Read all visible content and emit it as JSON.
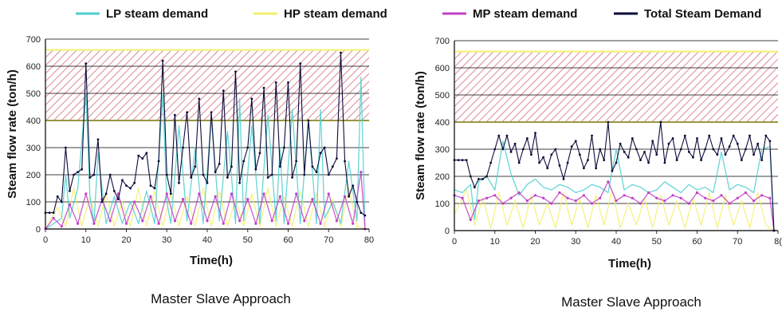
{
  "legend": [
    {
      "label": "LP steam demand",
      "color": "#4ccfd0"
    },
    {
      "label": "HP steam demand",
      "color": "#f3f06e"
    },
    {
      "label": "MP steam demand",
      "color": "#c23fc7"
    },
    {
      "label": "Total Steam Demand",
      "color": "#0b0b3a"
    }
  ],
  "chart_data": [
    {
      "type": "line",
      "caption": "Master Slave Approach",
      "xlabel": "Time(h)",
      "ylabel": "Steam flow rate (ton/h)",
      "xlim": [
        0,
        80
      ],
      "ylim": [
        0,
        700
      ],
      "xticks": [
        "0",
        "10",
        "20",
        "30",
        "40",
        "50",
        "60",
        "70",
        "80"
      ],
      "yticks": [
        "0",
        "100",
        "200",
        "300",
        "400",
        "500",
        "600",
        "700"
      ],
      "grid": "horizontal",
      "limit_band": {
        "from": 400,
        "to": 660,
        "color": "#f3f06e",
        "hatch": "#d66a7a"
      },
      "series": [
        {
          "name": "Total Steam Demand",
          "color": "#0b0b3a",
          "x": [
            0,
            1,
            2,
            3,
            4,
            5,
            6,
            7,
            8,
            9,
            10,
            11,
            12,
            13,
            14,
            15,
            16,
            17,
            18,
            19,
            20,
            21,
            22,
            23,
            24,
            25,
            26,
            27,
            28,
            29,
            30,
            31,
            32,
            33,
            34,
            35,
            36,
            37,
            38,
            39,
            40,
            41,
            42,
            43,
            44,
            45,
            46,
            47,
            48,
            49,
            50,
            51,
            52,
            53,
            54,
            55,
            56,
            57,
            58,
            59,
            60,
            61,
            62,
            63,
            64,
            65,
            66,
            67,
            68,
            69,
            70,
            71,
            72,
            73,
            74,
            75,
            76,
            77,
            78,
            79
          ],
          "y": [
            60,
            60,
            60,
            120,
            100,
            300,
            140,
            200,
            210,
            220,
            610,
            190,
            200,
            330,
            100,
            130,
            200,
            140,
            110,
            180,
            160,
            150,
            170,
            270,
            260,
            280,
            160,
            150,
            250,
            620,
            200,
            130,
            420,
            170,
            300,
            430,
            190,
            230,
            480,
            200,
            170,
            430,
            210,
            240,
            510,
            190,
            230,
            580,
            170,
            250,
            300,
            480,
            220,
            280,
            520,
            190,
            200,
            540,
            230,
            300,
            540,
            190,
            250,
            610,
            200,
            400,
            230,
            210,
            280,
            300,
            200,
            230,
            260,
            650,
            250,
            120,
            160,
            100,
            60,
            50
          ]
        },
        {
          "name": "LP steam demand",
          "color": "#4ccfd0",
          "x": [
            0,
            2,
            4,
            5,
            6,
            8,
            10,
            11,
            12,
            13,
            15,
            17,
            19,
            21,
            23,
            25,
            27,
            29,
            30,
            31,
            33,
            35,
            37,
            39,
            41,
            43,
            45,
            47,
            48,
            49,
            51,
            53,
            55,
            57,
            58,
            59,
            61,
            63,
            65,
            67,
            68,
            69,
            71,
            73,
            75,
            77,
            78,
            79
          ],
          "y": [
            0,
            20,
            40,
            200,
            40,
            150,
            500,
            120,
            20,
            280,
            20,
            120,
            20,
            100,
            20,
            140,
            20,
            500,
            100,
            20,
            380,
            30,
            300,
            20,
            410,
            30,
            360,
            20,
            480,
            30,
            380,
            20,
            420,
            30,
            300,
            20,
            440,
            20,
            400,
            20,
            440,
            40,
            100,
            20,
            250,
            30,
            560,
            10
          ]
        },
        {
          "name": "HP steam demand",
          "color": "#f3f06e",
          "x": [
            0,
            3,
            5,
            7,
            9,
            11,
            13,
            15,
            17,
            19,
            21,
            23,
            25,
            27,
            29,
            31,
            33,
            35,
            37,
            39,
            41,
            43,
            45,
            47,
            49,
            51,
            53,
            55,
            57,
            59,
            61,
            63,
            65,
            67,
            69,
            71,
            73,
            75,
            77,
            79
          ],
          "y": [
            0,
            80,
            10,
            150,
            10,
            120,
            10,
            130,
            10,
            100,
            10,
            150,
            10,
            140,
            10,
            130,
            10,
            120,
            10,
            150,
            10,
            140,
            10,
            110,
            10,
            130,
            10,
            150,
            10,
            120,
            10,
            140,
            10,
            130,
            10,
            110,
            10,
            150,
            10,
            0
          ]
        },
        {
          "name": "MP steam demand",
          "color": "#c23fc7",
          "x": [
            0,
            2,
            4,
            6,
            8,
            10,
            12,
            14,
            16,
            18,
            20,
            22,
            24,
            26,
            28,
            30,
            32,
            34,
            36,
            38,
            40,
            42,
            44,
            46,
            48,
            50,
            52,
            54,
            56,
            58,
            60,
            62,
            64,
            66,
            68,
            70,
            72,
            74,
            76,
            78,
            79
          ],
          "y": [
            0,
            40,
            10,
            90,
            20,
            130,
            20,
            110,
            30,
            130,
            20,
            100,
            30,
            120,
            20,
            130,
            30,
            110,
            20,
            130,
            30,
            120,
            20,
            130,
            30,
            110,
            20,
            130,
            30,
            120,
            20,
            130,
            30,
            110,
            20,
            130,
            30,
            120,
            20,
            210,
            0
          ]
        }
      ]
    },
    {
      "type": "line",
      "caption": "Master Slave Approach",
      "xlabel": "Time(h)",
      "ylabel": "Steam flow rate (ton/h)",
      "xlim": [
        0,
        80
      ],
      "ylim": [
        0,
        700
      ],
      "xticks": [
        "0",
        "10",
        "20",
        "30",
        "40",
        "50",
        "60",
        "70",
        "8("
      ],
      "yticks": [
        "0",
        "100",
        "200",
        "300",
        "400",
        "500",
        "600",
        "700"
      ],
      "grid": "horizontal",
      "limit_band": {
        "from": 400,
        "to": 660,
        "color": "#f3f06e",
        "hatch": "#d66a7a"
      },
      "series": [
        {
          "name": "Total Steam Demand",
          "color": "#0b0b3a",
          "x": [
            0,
            1,
            2,
            3,
            4,
            5,
            6,
            7,
            8,
            9,
            10,
            11,
            12,
            13,
            14,
            15,
            16,
            17,
            18,
            19,
            20,
            21,
            22,
            23,
            24,
            25,
            26,
            27,
            28,
            29,
            30,
            31,
            32,
            33,
            34,
            35,
            36,
            37,
            38,
            39,
            40,
            41,
            42,
            43,
            44,
            45,
            46,
            47,
            48,
            49,
            50,
            51,
            52,
            53,
            54,
            55,
            56,
            57,
            58,
            59,
            60,
            61,
            62,
            63,
            64,
            65,
            66,
            67,
            68,
            69,
            70,
            71,
            72,
            73,
            74,
            75,
            76,
            77,
            78,
            79
          ],
          "y": [
            260,
            260,
            260,
            260,
            200,
            160,
            190,
            190,
            200,
            250,
            300,
            350,
            300,
            350,
            290,
            320,
            250,
            300,
            340,
            280,
            360,
            250,
            270,
            230,
            280,
            300,
            240,
            190,
            250,
            310,
            330,
            280,
            230,
            260,
            350,
            230,
            300,
            260,
            400,
            220,
            250,
            320,
            290,
            270,
            340,
            300,
            260,
            290,
            250,
            330,
            280,
            400,
            250,
            320,
            340,
            260,
            300,
            350,
            290,
            270,
            340,
            260,
            300,
            350,
            300,
            280,
            340,
            280,
            310,
            350,
            320,
            260,
            300,
            350,
            280,
            320,
            260,
            350,
            330,
            0
          ]
        },
        {
          "name": "LP steam demand",
          "color": "#4ccfd0",
          "x": [
            0,
            2,
            4,
            5,
            6,
            8,
            10,
            12,
            14,
            16,
            18,
            20,
            22,
            24,
            26,
            28,
            30,
            32,
            34,
            36,
            38,
            40,
            42,
            44,
            46,
            48,
            50,
            52,
            54,
            56,
            58,
            60,
            62,
            64,
            66,
            68,
            70,
            72,
            74,
            76,
            78,
            79
          ],
          "y": [
            150,
            140,
            170,
            40,
            180,
            200,
            150,
            330,
            210,
            130,
            170,
            190,
            160,
            150,
            170,
            160,
            140,
            150,
            170,
            160,
            140,
            300,
            150,
            170,
            160,
            140,
            150,
            180,
            160,
            140,
            170,
            150,
            160,
            140,
            290,
            150,
            170,
            160,
            140,
            300,
            310,
            0
          ]
        },
        {
          "name": "HP steam demand",
          "color": "#f3f06e",
          "x": [
            0,
            3,
            5,
            7,
            9,
            11,
            13,
            15,
            17,
            19,
            21,
            23,
            25,
            27,
            29,
            31,
            33,
            35,
            37,
            39,
            41,
            43,
            45,
            47,
            49,
            51,
            53,
            55,
            57,
            59,
            61,
            63,
            65,
            67,
            69,
            71,
            73,
            75,
            77,
            79
          ],
          "y": [
            60,
            150,
            20,
            120,
            10,
            140,
            20,
            110,
            10,
            130,
            20,
            100,
            10,
            140,
            20,
            120,
            10,
            130,
            20,
            150,
            10,
            100,
            20,
            120,
            10,
            130,
            20,
            110,
            10,
            120,
            20,
            140,
            10,
            130,
            20,
            110,
            10,
            140,
            20,
            0
          ]
        },
        {
          "name": "MP steam demand",
          "color": "#c23fc7",
          "x": [
            0,
            2,
            4,
            6,
            8,
            10,
            12,
            14,
            16,
            18,
            20,
            22,
            24,
            26,
            28,
            30,
            32,
            34,
            36,
            38,
            40,
            42,
            44,
            46,
            48,
            50,
            52,
            54,
            56,
            58,
            60,
            62,
            64,
            66,
            68,
            70,
            72,
            74,
            76,
            78,
            79
          ],
          "y": [
            130,
            120,
            40,
            110,
            120,
            130,
            100,
            120,
            140,
            110,
            130,
            120,
            100,
            140,
            120,
            110,
            130,
            100,
            120,
            180,
            110,
            130,
            120,
            100,
            140,
            120,
            110,
            130,
            120,
            100,
            140,
            120,
            110,
            130,
            100,
            120,
            140,
            110,
            130,
            120,
            0
          ]
        }
      ]
    }
  ]
}
